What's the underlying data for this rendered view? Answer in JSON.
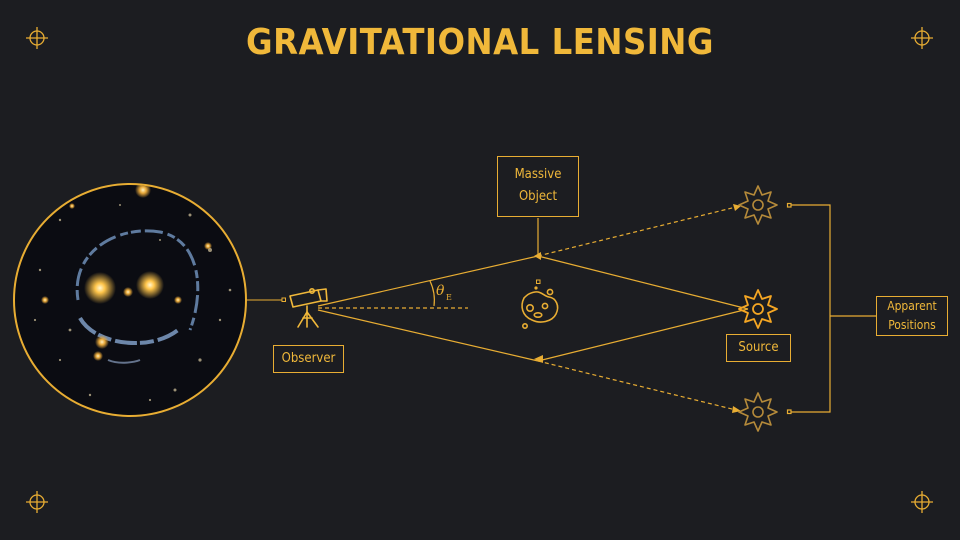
{
  "title": "GRAVITATIONAL LENSING",
  "labels": {
    "massive_object": [
      "Massive",
      "Object"
    ],
    "observer": "Observer",
    "source": "Source",
    "apparent_positions": [
      "Apparent",
      "Positions"
    ]
  },
  "angle_symbol": "θ",
  "angle_subscript": "E",
  "colors": {
    "background": "#1c1d21",
    "accent": "#e8ad33",
    "title": "#f0b83a",
    "source_bright": "#f5a623",
    "source_dim": "#b58a3a"
  },
  "icons": [
    "crosshair-icon",
    "telescope-icon",
    "asteroid-icon",
    "star-icon",
    "galaxy-photo"
  ]
}
